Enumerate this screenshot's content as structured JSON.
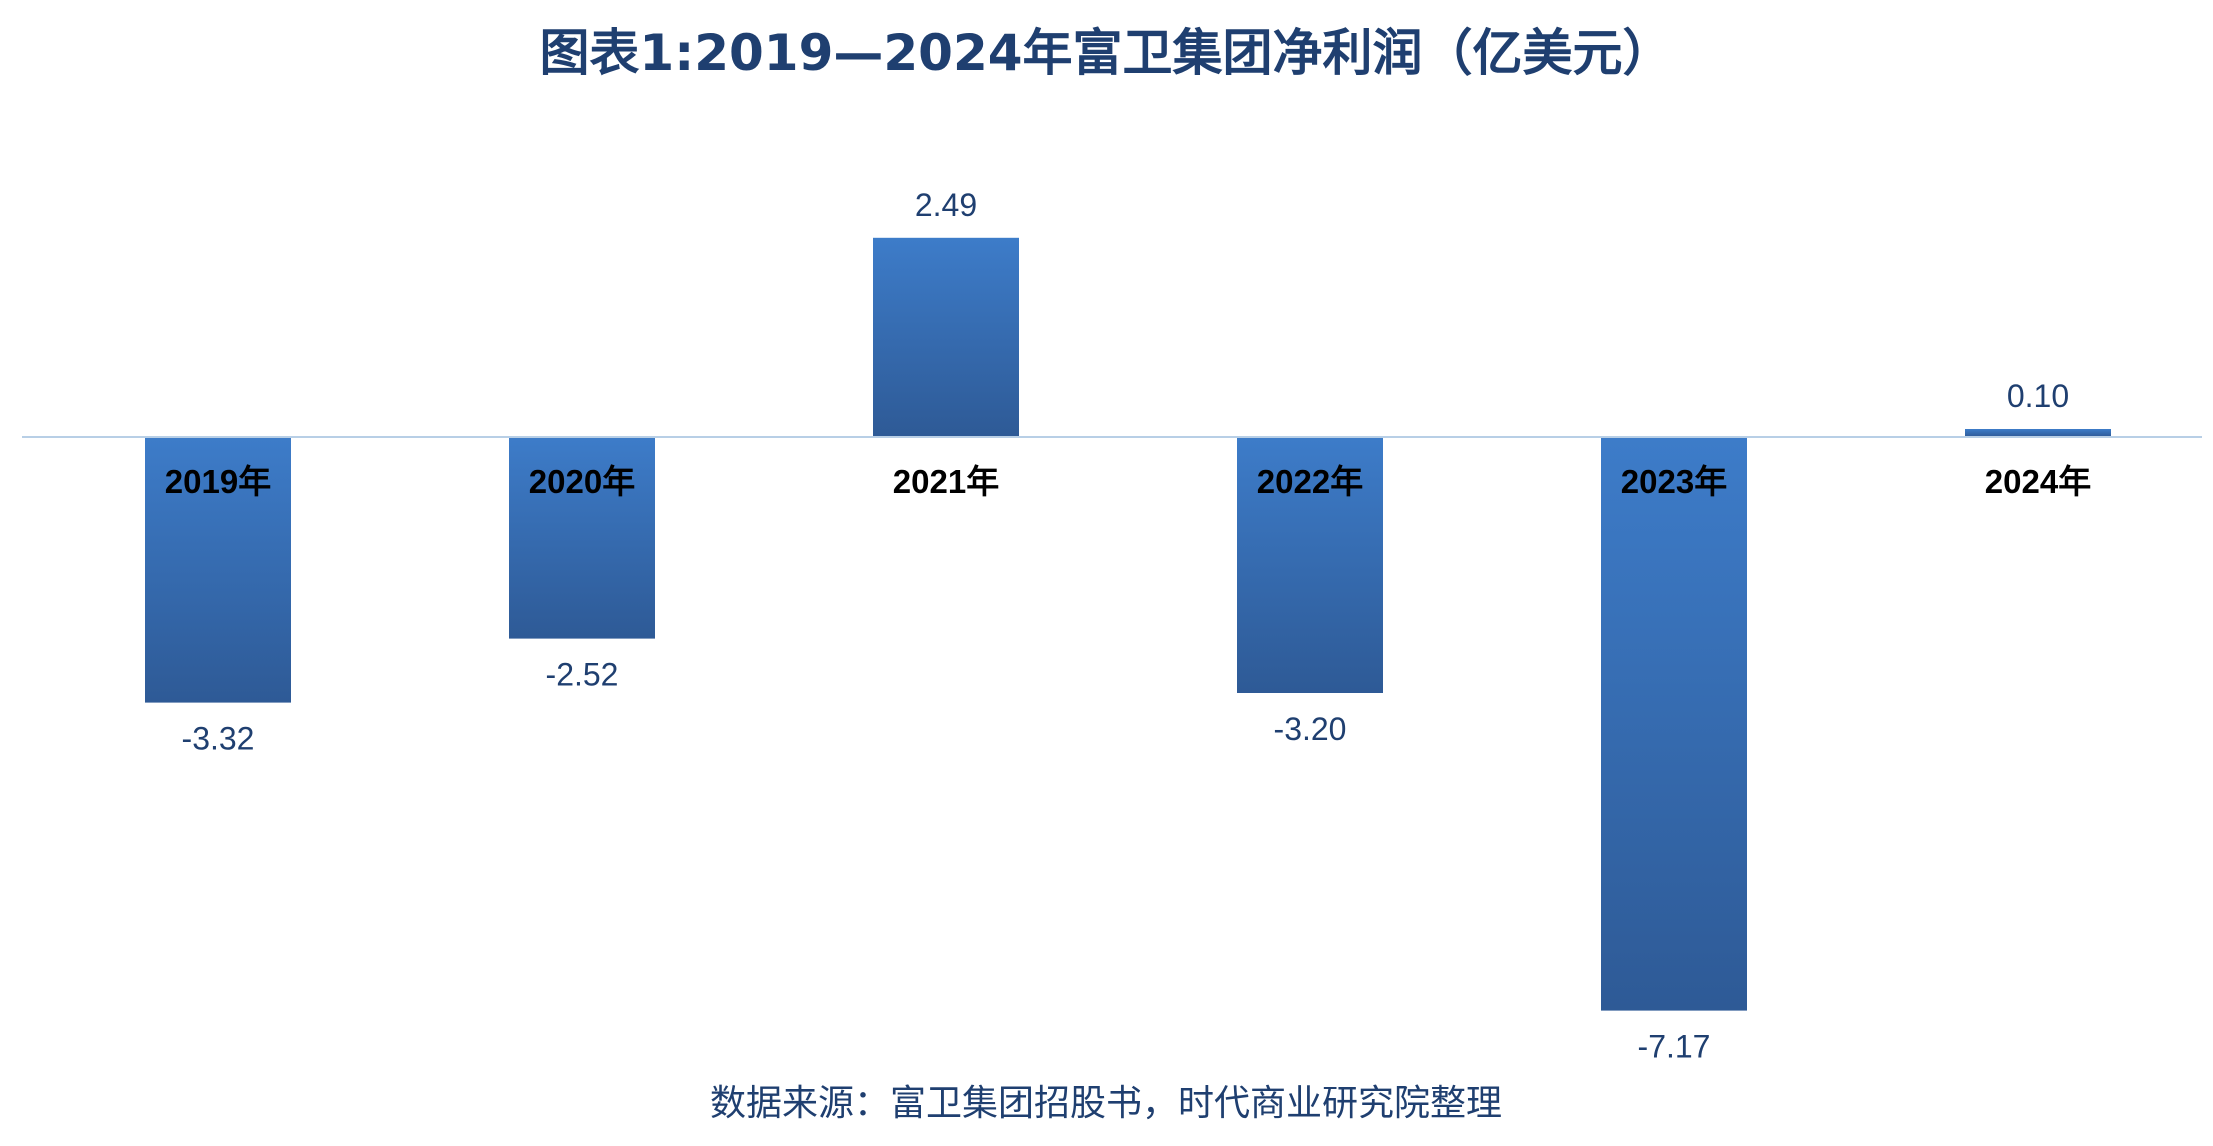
{
  "chart_data": {
    "type": "bar",
    "title": "图表1:2019—2024年富卫集团净利润（亿美元）",
    "categories": [
      "2019年",
      "2020年",
      "2021年",
      "2022年",
      "2023年",
      "2024年"
    ],
    "values": [
      -3.32,
      -2.52,
      2.49,
      -3.2,
      -7.17,
      0.1
    ],
    "value_labels": [
      "-3.32",
      "-2.52",
      "2.49",
      "-3.20",
      "-7.17",
      "0.10"
    ],
    "xlabel": "",
    "ylabel": "",
    "ylim": [
      -7.5,
      2.7
    ],
    "grid": false,
    "legend": "none",
    "colors": {
      "bar_top": "#3d7cc9",
      "bar_bottom": "#2e5a96",
      "baseline": "#b8cfe6",
      "title": "#1f3f70"
    }
  },
  "source": "数据来源：富卫集团招股书，时代商业研究院整理"
}
